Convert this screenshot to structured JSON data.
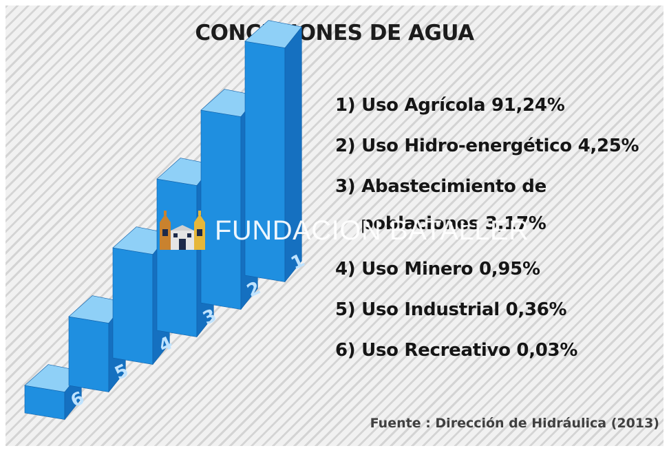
{
  "chart_data": {
    "type": "bar",
    "title": "CONCESIONES DE AGUA",
    "categories": [
      "6",
      "5",
      "4",
      "3",
      "2",
      "1"
    ],
    "values": [
      1,
      2,
      3,
      4,
      5,
      6
    ],
    "legend": [
      {
        "line1": "1) Uso Agrícola 91,24%",
        "line2": ""
      },
      {
        "line1": "2) Uso Hidro-energético 4,25%",
        "line2": ""
      },
      {
        "line1": "3) Abastecimiento de",
        "line2": "poblaciones 3,17%"
      },
      {
        "line1": "4) Uso Minero 0,95%",
        "line2": ""
      },
      {
        "line1": "5) Uso Industrial 0,36%",
        "line2": ""
      },
      {
        "line1": "6) Uso Recreativo 0,03%",
        "line2": ""
      }
    ],
    "source": "Fuente : Dirección de Hidráulica (2013)",
    "colors": {
      "front": "#1f8fe0",
      "top": "#8fd0f7",
      "side": "#1570c0",
      "label": "#bfe3ff"
    }
  },
  "watermark": {
    "text": "FUNDACION BATALLER",
    "icon": "church-towers-logo"
  }
}
